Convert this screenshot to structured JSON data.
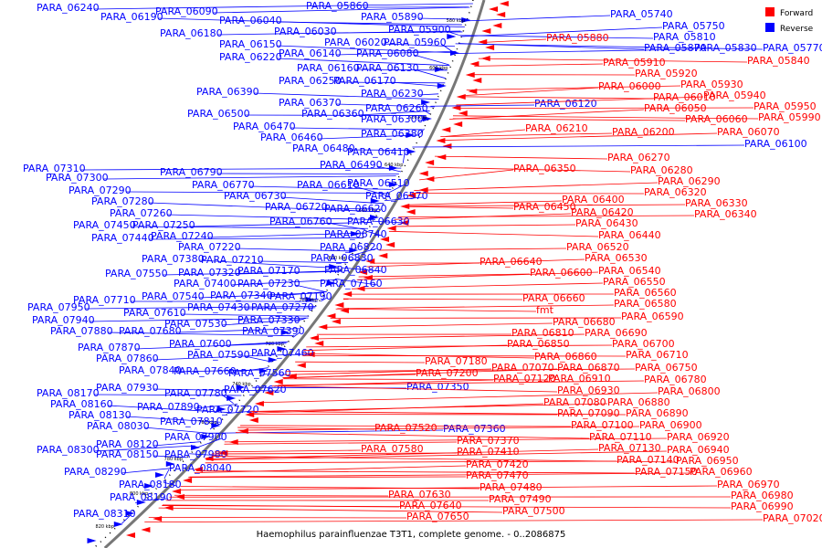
{
  "caption": "Haemophilus parainfluenzae T3T1, complete genome. - 0..2086875",
  "legend": {
    "forward": {
      "label": "Forward",
      "color": "#ff0000"
    },
    "reverse": {
      "label": "Reverse",
      "color": "#0000ff"
    }
  },
  "ticks": [
    "580 kbp",
    "600 kbp",
    "620 kbp",
    "640 kbp",
    "660 kbp",
    "680 kbp",
    "700 kbp",
    "720 kbp",
    "740 kbp",
    "760 kbp",
    "780 kbp",
    "800 kbp",
    "820 kbp"
  ],
  "reverse_labels": [
    "PARA_06240",
    "PARA_06190",
    "PARA_06090",
    "PARA_06040",
    "PARA_05860",
    "PARA_05890",
    "PARA_05900",
    "PARA_06180",
    "PARA_06030",
    "PARA_06020",
    "PARA_05960",
    "PARA_06150",
    "PARA_06140",
    "PARA_06080",
    "PARA_06220",
    "PARA_06160",
    "PARA_06130",
    "PARA_06250",
    "PARA_06170",
    "PARA_06230",
    "PARA_06390",
    "PARA_06370",
    "PARA_06260",
    "PARA_06500",
    "PARA_06360",
    "PARA_06300",
    "PARA_06470",
    "PARA_06380",
    "PARA_06460",
    "PARA_06480",
    "PARA_06410",
    "PARA_06490",
    "PARA_07310",
    "PARA_06790",
    "PARA_07300",
    "PARA_06770",
    "PARA_06610",
    "PARA_06510",
    "PARA_07290",
    "PARA_06730",
    "PARA_06570",
    "PARA_07280",
    "PARA_06720",
    "PARA_06620",
    "PARA_07260",
    "PARA_06760",
    "PARA_06630",
    "PARA_07450",
    "PARA_07250",
    "PARA_06740",
    "PARA_07440",
    "PARA_07240",
    "PARA_06820",
    "PARA_07220",
    "PARA_06830",
    "PARA_07380",
    "PARA_07210",
    "PARA_07320",
    "PARA_07170",
    "PARA_06840",
    "PARA_07550",
    "PARA_07400",
    "PARA_07230",
    "PARA_07160",
    "PARA_07540",
    "PARA_07340",
    "PARA_07190",
    "PARA_07950",
    "PARA_07710",
    "PARA_07430",
    "PARA_07270",
    "PARA_07610",
    "PARA_07940",
    "PARA_07530",
    "PARA_07330",
    "PARA_07880",
    "PARA_07680",
    "PARA_07390",
    "PARA_07600",
    "PARA_07870",
    "PARA_07590",
    "PARA_07460",
    "PARA_07860",
    "PARA_07840",
    "PARA_07660",
    "PARA_07560",
    "PARA_07930",
    "PARA_07620",
    "PARA_08170",
    "PARA_07780",
    "PARA_08160",
    "PARA_07890",
    "PARA_07720",
    "PARA_08130",
    "PARA_07810",
    "PARA_08030",
    "PARA_07900",
    "PARA_08120",
    "PARA_08300",
    "PARA_08150",
    "PARA_07980",
    "PARA_08040",
    "PARA_08290",
    "PARA_08180",
    "PARA_08190",
    "PARA_08310",
    "PARA_07350",
    "PARA_07360",
    "PARA_05740",
    "PARA_05750",
    "PARA_05810",
    "PARA_05830",
    "PARA_05770",
    "PARA_05870",
    "PARA_06100",
    "PARA_06120"
  ],
  "forward_labels": [
    "PARA_05880",
    "PARA_05840",
    "PARA_05910",
    "PARA_05920",
    "PARA_06000",
    "PARA_05930",
    "PARA_06010",
    "PARA_05940",
    "PARA_06050",
    "PARA_05950",
    "PARA_06060",
    "PARA_05990",
    "PARA_06070",
    "PARA_06210",
    "PARA_06200",
    "PARA_06270",
    "PARA_06350",
    "PARA_06280",
    "PARA_06290",
    "PARA_06320",
    "PARA_06400",
    "PARA_06330",
    "PARA_06450",
    "PARA_06420",
    "PARA_06340",
    "PARA_06430",
    "PARA_06440",
    "PARA_06520",
    "PARA_06530",
    "PARA_06640",
    "PARA_06540",
    "PARA_06600",
    "PARA_06550",
    "PARA_06560",
    "PARA_06660",
    "PARA_06580",
    "fmt",
    "PARA_06590",
    "PARA_06680",
    "PARA_06810",
    "PARA_06690",
    "PARA_06850",
    "PARA_06700",
    "PARA_06860",
    "PARA_06710",
    "PARA_07180",
    "PARA_07070",
    "PARA_06870",
    "PARA_06750",
    "PARA_07200",
    "PARA_07120",
    "PARA_06910",
    "PARA_06780",
    "PARA_06930",
    "PARA_06800",
    "PARA_07080",
    "PARA_06880",
    "PARA_07090",
    "PARA_06890",
    "PARA_07100",
    "PARA_06900",
    "PARA_07110",
    "PARA_06920",
    "PARA_07130",
    "PARA_06940",
    "PARA_07140",
    "PARA_06950",
    "PARA_07150",
    "PARA_06960",
    "PARA_06970",
    "PARA_06980",
    "PARA_06990",
    "PARA_07020",
    "PARA_07520",
    "PARA_07370",
    "PARA_07580",
    "PARA_07410",
    "PARA_07420",
    "PARA_07470",
    "PARA_07480",
    "PARA_07490",
    "PARA_07500",
    "PARA_07630",
    "PARA_07640",
    "PARA_07650"
  ]
}
